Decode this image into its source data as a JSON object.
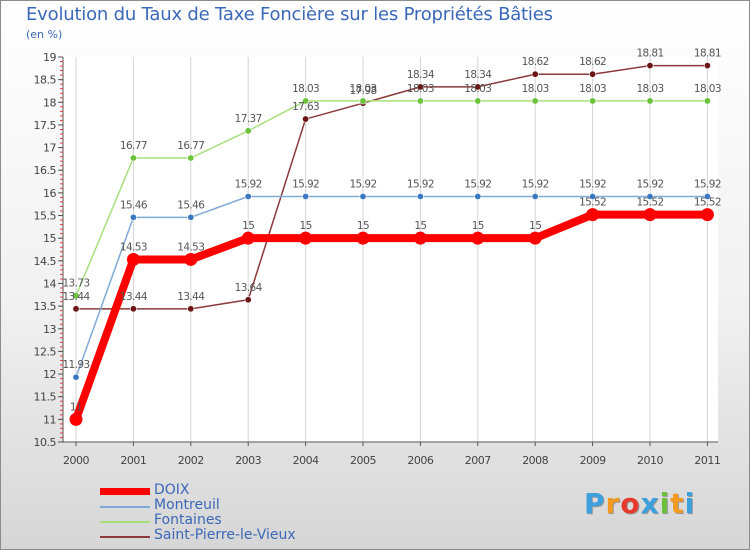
{
  "header": {
    "title": "Evolution du Taux de Taxe Foncière sur les Propriétés Bâties",
    "unit": "(en %)"
  },
  "chart_data": {
    "type": "line",
    "title": "Evolution du Taux de Taxe Foncière sur les Propriétés Bâties",
    "ylabel": "(en %)",
    "xlabel": "",
    "x": [
      "2000",
      "2001",
      "2002",
      "2003",
      "2004",
      "2005",
      "2006",
      "2007",
      "2008",
      "2009",
      "2010",
      "2011"
    ],
    "ylim": [
      10.5,
      19
    ],
    "yticks": [
      "10.5",
      "11",
      "11.5",
      "12",
      "12.5",
      "13",
      "13.5",
      "14",
      "14.5",
      "15",
      "15.5",
      "16",
      "16.5",
      "17",
      "17.5",
      "18",
      "18.5",
      "19"
    ],
    "grid": "vertical",
    "legend_position": "bottom-left",
    "series": [
      {
        "name": "DOIX",
        "color": "#ff0000",
        "marker_color": "#ff0000",
        "values": [
          11,
          14.53,
          14.53,
          15,
          15,
          15,
          15,
          15,
          15,
          15.52,
          15.52,
          15.52
        ],
        "labels": [
          "11",
          "14.53",
          "14.53",
          "15",
          "15",
          "15",
          "15",
          "15",
          "15",
          "15.52",
          "15.52",
          "15.52"
        ]
      },
      {
        "name": "Montreuil",
        "color": "#7faad6",
        "marker_color": "#3b78c2",
        "values": [
          11.93,
          15.46,
          15.46,
          15.92,
          15.92,
          15.92,
          15.92,
          15.92,
          15.92,
          15.92,
          15.92,
          15.92
        ],
        "labels": [
          "11.93",
          "15.46",
          "15.46",
          "15.92",
          "15.92",
          "15.92",
          "15.92",
          "15.92",
          "15.92",
          "15.92",
          "15.92",
          "15.92"
        ]
      },
      {
        "name": "Fontaines",
        "color": "#a6e07a",
        "marker_color": "#6cc23a",
        "values": [
          13.73,
          16.77,
          16.77,
          17.37,
          18.03,
          18.03,
          18.03,
          18.03,
          18.03,
          18.03,
          18.03,
          18.03
        ],
        "labels": [
          "13.73",
          "16.77",
          "16.77",
          "17.37",
          "18.03",
          "18.03",
          "18.03",
          "18.03",
          "18.03",
          "18.03",
          "18.03",
          "18.03"
        ]
      },
      {
        "name": "Saint-Pierre-le-Vieux",
        "color": "#8a3a3a",
        "marker_color": "#6b1515",
        "values": [
          13.44,
          13.44,
          13.44,
          13.64,
          17.63,
          17.98,
          18.34,
          18.34,
          18.62,
          18.62,
          18.81,
          18.81
        ],
        "labels": [
          "13.44",
          "13.44",
          "13.44",
          "13.64",
          "17.63",
          "17.98",
          "18.34",
          "18.34",
          "18.62",
          "18.62",
          "18.81",
          "18.81"
        ]
      }
    ]
  },
  "logo": {
    "letters": [
      "P",
      "r",
      "o",
      "x",
      "i",
      "t",
      "i"
    ],
    "colors": [
      "#3ba0dc",
      "#f39a1e",
      "#e8392d",
      "#3ba0dc",
      "#6cbf3a",
      "#f39a1e",
      "#3ba0dc"
    ]
  }
}
